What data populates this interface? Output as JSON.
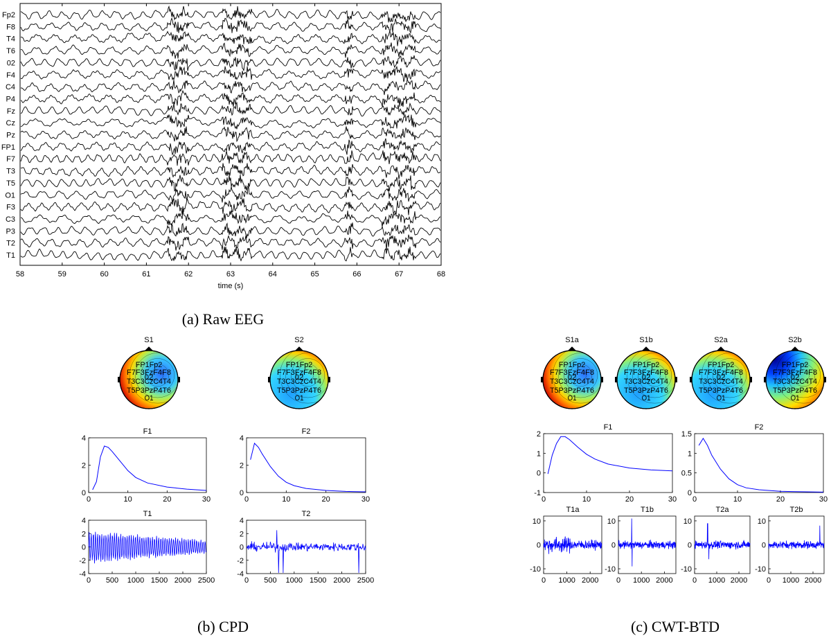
{
  "chart_data": [
    {
      "panel": "a",
      "type": "line",
      "caption": "(a) Raw EEG",
      "xlabel": "time (s)",
      "xlim": [
        58,
        68
      ],
      "x_ticks": [
        "58",
        "59",
        "60",
        "61",
        "62",
        "63",
        "64",
        "65",
        "66",
        "67",
        "68"
      ],
      "channels": [
        "Fp2",
        "F8",
        "T4",
        "T6",
        "02",
        "F4",
        "C4",
        "P4",
        "Fz",
        "Cz",
        "Pz",
        "FP1",
        "F7",
        "T3",
        "T5",
        "O1",
        "F3",
        "C3",
        "P3",
        "T2",
        "T1"
      ],
      "artifact_windows_s": [
        [
          61.5,
          62.0
        ],
        [
          62.8,
          63.5
        ],
        [
          65.7,
          65.9
        ],
        [
          66.6,
          67.4
        ]
      ]
    },
    {
      "panel": "b",
      "caption": "(b) CPD",
      "spatial": {
        "S1": {
          "title": "S1",
          "electrodes": "FP1Fp2 F7F3FzF4F8 T3C3CzC4T4 T5P3PzP4T6 O1 02"
        },
        "S2": {
          "title": "S2",
          "electrodes": "FP1Fp2 F7F3FzF4F8 T3C3CzC4T4 T5P3PzP4T6 O1 02"
        }
      },
      "frequency": [
        {
          "title": "F1",
          "type": "line",
          "xlim": [
            0,
            30
          ],
          "ylim": [
            0,
            4
          ],
          "x_ticks": [
            "0",
            "10",
            "20",
            "30"
          ],
          "y_ticks": [
            "0",
            "2",
            "4"
          ],
          "x": [
            1,
            2,
            3,
            4,
            5,
            6,
            8,
            10,
            12,
            15,
            20,
            25,
            30
          ],
          "values": [
            0.2,
            0.8,
            2.6,
            3.4,
            3.3,
            3.0,
            2.3,
            1.6,
            1.1,
            0.7,
            0.4,
            0.25,
            0.15
          ]
        },
        {
          "title": "F2",
          "type": "line",
          "xlim": [
            0,
            30
          ],
          "ylim": [
            0,
            4
          ],
          "x_ticks": [
            "0",
            "10",
            "20",
            "30"
          ],
          "y_ticks": [
            "0",
            "2",
            "4"
          ],
          "x": [
            1,
            2,
            3,
            4,
            6,
            8,
            10,
            12,
            15,
            20,
            25,
            30
          ],
          "values": [
            2.4,
            3.6,
            3.3,
            2.8,
            1.9,
            1.2,
            0.75,
            0.5,
            0.3,
            0.15,
            0.08,
            0.05
          ]
        }
      ],
      "temporal": [
        {
          "title": "T1",
          "type": "line",
          "xlim": [
            0,
            2500
          ],
          "ylim": [
            -4,
            4
          ],
          "x_ticks": [
            "0",
            "500",
            "1000",
            "1500",
            "2000",
            "2500"
          ],
          "y_ticks": [
            "-4",
            "-2",
            "0",
            "2",
            "4"
          ]
        },
        {
          "title": "T2",
          "type": "line",
          "xlim": [
            0,
            2500
          ],
          "ylim": [
            -4,
            4
          ],
          "x_ticks": [
            "0",
            "500",
            "1000",
            "1500",
            "2000",
            "2500"
          ],
          "y_ticks": [
            "-4",
            "-2",
            "0",
            "2",
            "4"
          ]
        }
      ]
    },
    {
      "panel": "c",
      "caption": "(c) CWT-BTD",
      "spatial": {
        "S1a": {
          "title": "S1a",
          "electrodes": "FP1Fp2 F7F3FzF4F8 T3C3CzC4T4 T5P3PzP4T6 O1 02"
        },
        "S1b": {
          "title": "S1b",
          "electrodes": "FP1Fp2 F7F3FzF4F8 T3C3CzC4T4 T5P3PzP4T6 O1 02"
        },
        "S2a": {
          "title": "S2a",
          "electrodes": "FP1Fp2 F7F3FzF4F8 T3C3CzC4T4 T5P3PzP4T6 O1 02"
        },
        "S2b": {
          "title": "S2b",
          "electrodes": "FP1Fp2 F7F3FzF4F8 T3C3CzC4T4 T5P3PzP4T6 O1 02"
        }
      },
      "frequency": [
        {
          "title": "F1",
          "type": "line",
          "xlim": [
            0,
            30
          ],
          "ylim": [
            -1,
            2
          ],
          "x_ticks": [
            "0",
            "10",
            "20",
            "30"
          ],
          "y_ticks": [
            "-1",
            "0",
            "1",
            "2"
          ],
          "x": [
            1,
            2,
            3,
            4,
            5,
            6,
            8,
            10,
            12,
            15,
            20,
            25,
            30
          ],
          "values": [
            -0.05,
            0.9,
            1.5,
            1.85,
            1.85,
            1.7,
            1.3,
            0.95,
            0.7,
            0.45,
            0.25,
            0.15,
            0.1
          ]
        },
        {
          "title": "F2",
          "type": "line",
          "xlim": [
            0,
            30
          ],
          "ylim": [
            0,
            1.5
          ],
          "x_ticks": [
            "0",
            "10",
            "20",
            "30"
          ],
          "y_ticks": [
            "0",
            "0.5",
            "1",
            "1.5"
          ],
          "x": [
            1,
            2,
            3,
            4,
            6,
            8,
            10,
            12,
            15,
            20,
            25,
            30
          ],
          "values": [
            1.2,
            1.38,
            1.2,
            0.95,
            0.6,
            0.35,
            0.2,
            0.12,
            0.07,
            0.03,
            0.02,
            0.01
          ]
        }
      ],
      "temporal": [
        {
          "title": "T1a",
          "type": "line",
          "xlim": [
            0,
            2500
          ],
          "ylim": [
            -12,
            12
          ],
          "x_ticks": [
            "0",
            "1000",
            "2000"
          ],
          "y_ticks": [
            "-10",
            "0",
            "10"
          ]
        },
        {
          "title": "T1b",
          "type": "line",
          "xlim": [
            0,
            2500
          ],
          "ylim": [
            -12,
            12
          ],
          "x_ticks": [
            "0",
            "1000",
            "2000"
          ],
          "y_ticks": [
            "-10",
            "0",
            "10"
          ]
        },
        {
          "title": "T2a",
          "type": "line",
          "xlim": [
            0,
            2500
          ],
          "ylim": [
            -12,
            12
          ],
          "x_ticks": [
            "0",
            "1000",
            "2000"
          ],
          "y_ticks": [
            "-10",
            "0",
            "10"
          ]
        },
        {
          "title": "T2b",
          "type": "line",
          "xlim": [
            0,
            2500
          ],
          "ylim": [
            -12,
            12
          ],
          "x_ticks": [
            "0",
            "1000",
            "2000"
          ],
          "y_ticks": [
            "-10",
            "0",
            "10"
          ]
        }
      ]
    }
  ],
  "colors": {
    "trace": "#000000",
    "line": "#0000ff",
    "axis": "#000000"
  }
}
